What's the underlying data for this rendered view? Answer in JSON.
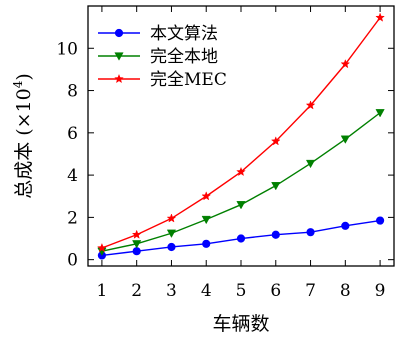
{
  "chart_data": {
    "type": "line",
    "x": [
      1,
      2,
      3,
      4,
      5,
      6,
      7,
      8,
      9
    ],
    "xlabel": "车辆数",
    "ylabel": "总成本 (×10⁴)",
    "ylabel_text": "总成本",
    "ylabel_unit": "(×10",
    "ylabel_exp": "4",
    "ylabel_close": ")",
    "xlim": [
      0.6,
      9.4
    ],
    "ylim": [
      -0.3,
      12.0
    ],
    "xticks": [
      1,
      2,
      3,
      4,
      5,
      6,
      7,
      8,
      9
    ],
    "yticks": [
      0,
      2,
      4,
      6,
      8,
      10
    ],
    "grid": false,
    "legend_position": "top-left",
    "series": [
      {
        "name": "本文算法",
        "color": "#0000ff",
        "marker": "circle",
        "values": [
          0.2,
          0.4,
          0.6,
          0.75,
          1.0,
          1.18,
          1.3,
          1.6,
          1.85
        ]
      },
      {
        "name": "完全本地",
        "color": "#008000",
        "marker": "triangle-down",
        "values": [
          0.4,
          0.75,
          1.25,
          1.9,
          2.6,
          3.5,
          4.55,
          5.7,
          6.95
        ]
      },
      {
        "name": "完全MEC",
        "color": "#ff0000",
        "marker": "star",
        "values": [
          0.55,
          1.18,
          1.95,
          3.0,
          4.15,
          5.6,
          7.3,
          9.25,
          11.45
        ]
      }
    ]
  }
}
